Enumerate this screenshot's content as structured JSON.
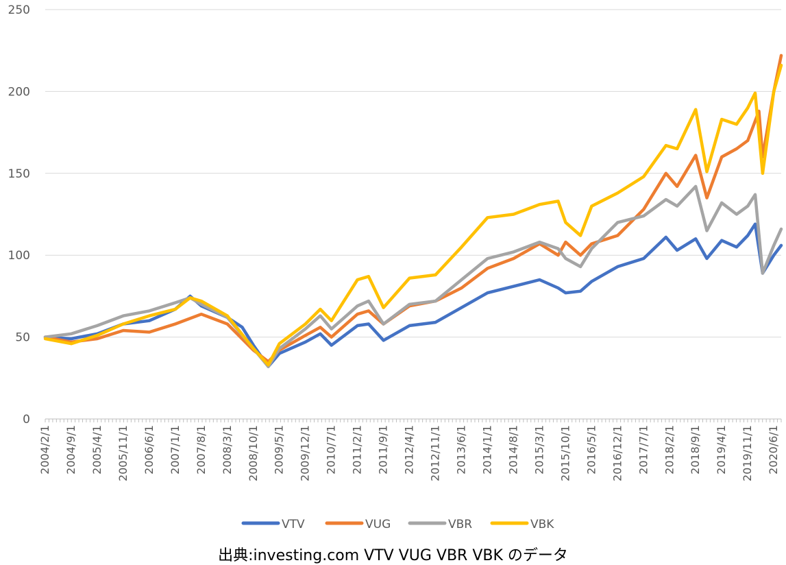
{
  "caption": "出典:investing.com VTV VUG VBR VBK のデータ",
  "chart_data": {
    "type": "line",
    "ylim": [
      0,
      250
    ],
    "yticks": [
      0,
      50,
      100,
      150,
      200,
      250
    ],
    "grid": true,
    "legend_position": "bottom",
    "x_start": "2004/2/1",
    "x_end": "2020/8/1",
    "xtick_labels": [
      "2004/2/1",
      "2004/9/1",
      "2005/4/1",
      "2005/11/1",
      "2006/6/1",
      "2007/1/1",
      "2007/8/1",
      "2008/3/1",
      "2008/10/1",
      "2009/5/1",
      "2009/12/1",
      "2010/7/1",
      "2011/2/1",
      "2011/9/1",
      "2012/4/1",
      "2012/11/1",
      "2013/6/1",
      "2014/1/1",
      "2014/8/1",
      "2015/3/1",
      "2015/10/1",
      "2016/5/1",
      "2016/12/1",
      "2017/7/1",
      "2018/2/1",
      "2018/9/1",
      "2019/4/1",
      "2019/11/1",
      "2020/6/1"
    ],
    "series": [
      {
        "name": "VTV",
        "color": "#4472C4",
        "points": [
          [
            "2004/2/1",
            50
          ],
          [
            "2004/9/1",
            49
          ],
          [
            "2005/4/1",
            52
          ],
          [
            "2005/11/1",
            58
          ],
          [
            "2006/6/1",
            60
          ],
          [
            "2007/1/1",
            67
          ],
          [
            "2007/5/1",
            75
          ],
          [
            "2007/8/1",
            69
          ],
          [
            "2008/3/1",
            62
          ],
          [
            "2008/7/1",
            56
          ],
          [
            "2008/10/1",
            45
          ],
          [
            "2009/2/1",
            32
          ],
          [
            "2009/5/1",
            40
          ],
          [
            "2009/12/1",
            47
          ],
          [
            "2010/4/1",
            52
          ],
          [
            "2010/7/1",
            45
          ],
          [
            "2011/2/1",
            57
          ],
          [
            "2011/5/1",
            58
          ],
          [
            "2011/9/1",
            48
          ],
          [
            "2012/4/1",
            57
          ],
          [
            "2012/11/1",
            59
          ],
          [
            "2013/6/1",
            68
          ],
          [
            "2014/1/1",
            77
          ],
          [
            "2014/8/1",
            81
          ],
          [
            "2015/3/1",
            85
          ],
          [
            "2015/8/1",
            80
          ],
          [
            "2015/10/1",
            77
          ],
          [
            "2016/2/1",
            78
          ],
          [
            "2016/5/1",
            84
          ],
          [
            "2016/12/1",
            93
          ],
          [
            "2017/7/1",
            98
          ],
          [
            "2018/1/1",
            111
          ],
          [
            "2018/4/1",
            103
          ],
          [
            "2018/9/1",
            110
          ],
          [
            "2018/12/1",
            98
          ],
          [
            "2019/4/1",
            109
          ],
          [
            "2019/8/1",
            105
          ],
          [
            "2019/11/1",
            112
          ],
          [
            "2020/1/1",
            119
          ],
          [
            "2020/3/1",
            89
          ],
          [
            "2020/6/1",
            100
          ],
          [
            "2020/8/1",
            106
          ]
        ]
      },
      {
        "name": "VUG",
        "color": "#ED7D31",
        "points": [
          [
            "2004/2/1",
            50
          ],
          [
            "2004/9/1",
            47
          ],
          [
            "2005/4/1",
            49
          ],
          [
            "2005/11/1",
            54
          ],
          [
            "2006/6/1",
            53
          ],
          [
            "2007/1/1",
            58
          ],
          [
            "2007/8/1",
            64
          ],
          [
            "2008/3/1",
            58
          ],
          [
            "2008/10/1",
            42
          ],
          [
            "2009/2/1",
            35
          ],
          [
            "2009/5/1",
            42
          ],
          [
            "2009/12/1",
            51
          ],
          [
            "2010/4/1",
            56
          ],
          [
            "2010/7/1",
            50
          ],
          [
            "2011/2/1",
            64
          ],
          [
            "2011/5/1",
            66
          ],
          [
            "2011/9/1",
            58
          ],
          [
            "2012/4/1",
            69
          ],
          [
            "2012/11/1",
            72
          ],
          [
            "2013/6/1",
            80
          ],
          [
            "2014/1/1",
            92
          ],
          [
            "2014/8/1",
            98
          ],
          [
            "2015/3/1",
            107
          ],
          [
            "2015/8/1",
            100
          ],
          [
            "2015/10/1",
            108
          ],
          [
            "2016/2/1",
            100
          ],
          [
            "2016/5/1",
            107
          ],
          [
            "2016/12/1",
            112
          ],
          [
            "2017/7/1",
            128
          ],
          [
            "2018/1/1",
            150
          ],
          [
            "2018/4/1",
            142
          ],
          [
            "2018/9/1",
            161
          ],
          [
            "2018/12/1",
            135
          ],
          [
            "2019/4/1",
            160
          ],
          [
            "2019/8/1",
            165
          ],
          [
            "2019/11/1",
            170
          ],
          [
            "2020/2/1",
            188
          ],
          [
            "2020/3/1",
            160
          ],
          [
            "2020/6/1",
            200
          ],
          [
            "2020/8/1",
            222
          ]
        ]
      },
      {
        "name": "VBR",
        "color": "#A5A5A5",
        "points": [
          [
            "2004/2/1",
            50
          ],
          [
            "2004/9/1",
            52
          ],
          [
            "2005/4/1",
            57
          ],
          [
            "2005/11/1",
            63
          ],
          [
            "2006/6/1",
            66
          ],
          [
            "2007/1/1",
            71
          ],
          [
            "2007/5/1",
            74
          ],
          [
            "2007/8/1",
            70
          ],
          [
            "2008/3/1",
            62
          ],
          [
            "2008/10/1",
            43
          ],
          [
            "2009/2/1",
            32
          ],
          [
            "2009/5/1",
            43
          ],
          [
            "2009/12/1",
            55
          ],
          [
            "2010/4/1",
            63
          ],
          [
            "2010/7/1",
            55
          ],
          [
            "2011/2/1",
            69
          ],
          [
            "2011/5/1",
            72
          ],
          [
            "2011/9/1",
            58
          ],
          [
            "2012/4/1",
            70
          ],
          [
            "2012/11/1",
            72
          ],
          [
            "2013/6/1",
            85
          ],
          [
            "2014/1/1",
            98
          ],
          [
            "2014/8/1",
            102
          ],
          [
            "2015/3/1",
            108
          ],
          [
            "2015/8/1",
            104
          ],
          [
            "2015/10/1",
            98
          ],
          [
            "2016/2/1",
            93
          ],
          [
            "2016/5/1",
            104
          ],
          [
            "2016/12/1",
            120
          ],
          [
            "2017/7/1",
            124
          ],
          [
            "2018/1/1",
            134
          ],
          [
            "2018/4/1",
            130
          ],
          [
            "2018/9/1",
            142
          ],
          [
            "2018/12/1",
            115
          ],
          [
            "2019/4/1",
            132
          ],
          [
            "2019/8/1",
            125
          ],
          [
            "2019/11/1",
            130
          ],
          [
            "2020/1/1",
            137
          ],
          [
            "2020/3/1",
            89
          ],
          [
            "2020/6/1",
            106
          ],
          [
            "2020/8/1",
            116
          ]
        ]
      },
      {
        "name": "VBK",
        "color": "#FFC000",
        "points": [
          [
            "2004/2/1",
            49
          ],
          [
            "2004/9/1",
            46
          ],
          [
            "2005/4/1",
            51
          ],
          [
            "2005/11/1",
            58
          ],
          [
            "2006/6/1",
            63
          ],
          [
            "2007/1/1",
            67
          ],
          [
            "2007/5/1",
            74
          ],
          [
            "2007/8/1",
            72
          ],
          [
            "2008/3/1",
            63
          ],
          [
            "2008/10/1",
            43
          ],
          [
            "2009/2/1",
            33
          ],
          [
            "2009/5/1",
            46
          ],
          [
            "2009/12/1",
            58
          ],
          [
            "2010/4/1",
            67
          ],
          [
            "2010/7/1",
            60
          ],
          [
            "2011/2/1",
            85
          ],
          [
            "2011/5/1",
            87
          ],
          [
            "2011/9/1",
            68
          ],
          [
            "2012/4/1",
            86
          ],
          [
            "2012/11/1",
            88
          ],
          [
            "2013/6/1",
            105
          ],
          [
            "2014/1/1",
            123
          ],
          [
            "2014/8/1",
            125
          ],
          [
            "2015/3/1",
            131
          ],
          [
            "2015/8/1",
            133
          ],
          [
            "2015/10/1",
            120
          ],
          [
            "2016/2/1",
            112
          ],
          [
            "2016/5/1",
            130
          ],
          [
            "2016/12/1",
            138
          ],
          [
            "2017/7/1",
            148
          ],
          [
            "2018/1/1",
            167
          ],
          [
            "2018/4/1",
            165
          ],
          [
            "2018/9/1",
            189
          ],
          [
            "2018/12/1",
            151
          ],
          [
            "2019/4/1",
            183
          ],
          [
            "2019/8/1",
            180
          ],
          [
            "2019/11/1",
            190
          ],
          [
            "2020/1/1",
            199
          ],
          [
            "2020/3/1",
            150
          ],
          [
            "2020/6/1",
            200
          ],
          [
            "2020/8/1",
            216
          ]
        ]
      }
    ]
  }
}
